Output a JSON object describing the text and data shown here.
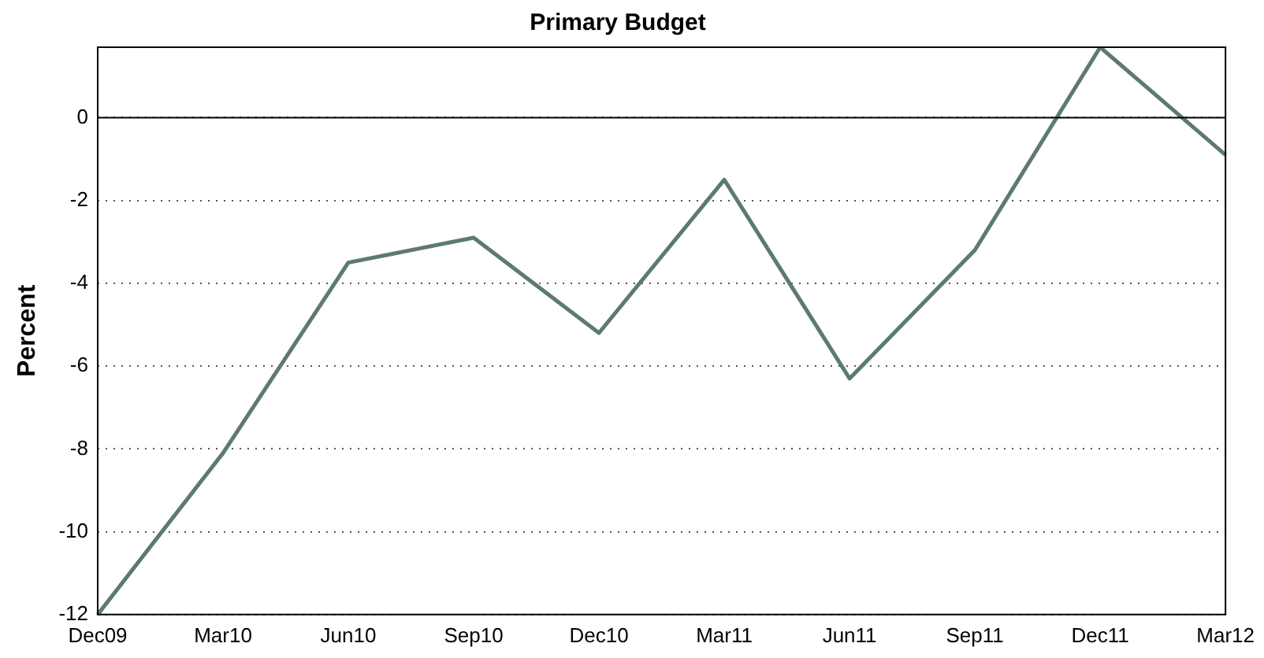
{
  "chart_data": {
    "type": "line",
    "title": "Primary Budget",
    "ylabel": "Percent",
    "categories": [
      "Dec09",
      "Mar10",
      "Jun10",
      "Sep10",
      "Dec10",
      "Mar11",
      "Jun11",
      "Sep11",
      "Dec11",
      "Mar12"
    ],
    "series": [
      {
        "color": "#5e7a70",
        "values": [
          -12,
          -8.1,
          -3.5,
          -2.9,
          -5.2,
          -1.5,
          -6.3,
          -3.2,
          1.7,
          -0.9
        ]
      }
    ],
    "ylim": [
      -12,
      1.7
    ],
    "yticks": [
      -12,
      -10,
      -8,
      -6,
      -4,
      -2,
      0
    ],
    "grid": "y",
    "legend": false,
    "marker": "none",
    "line_style": "solid",
    "ref_lines": [
      {
        "axis": "y",
        "value": 0,
        "color": "#000000"
      }
    ]
  }
}
